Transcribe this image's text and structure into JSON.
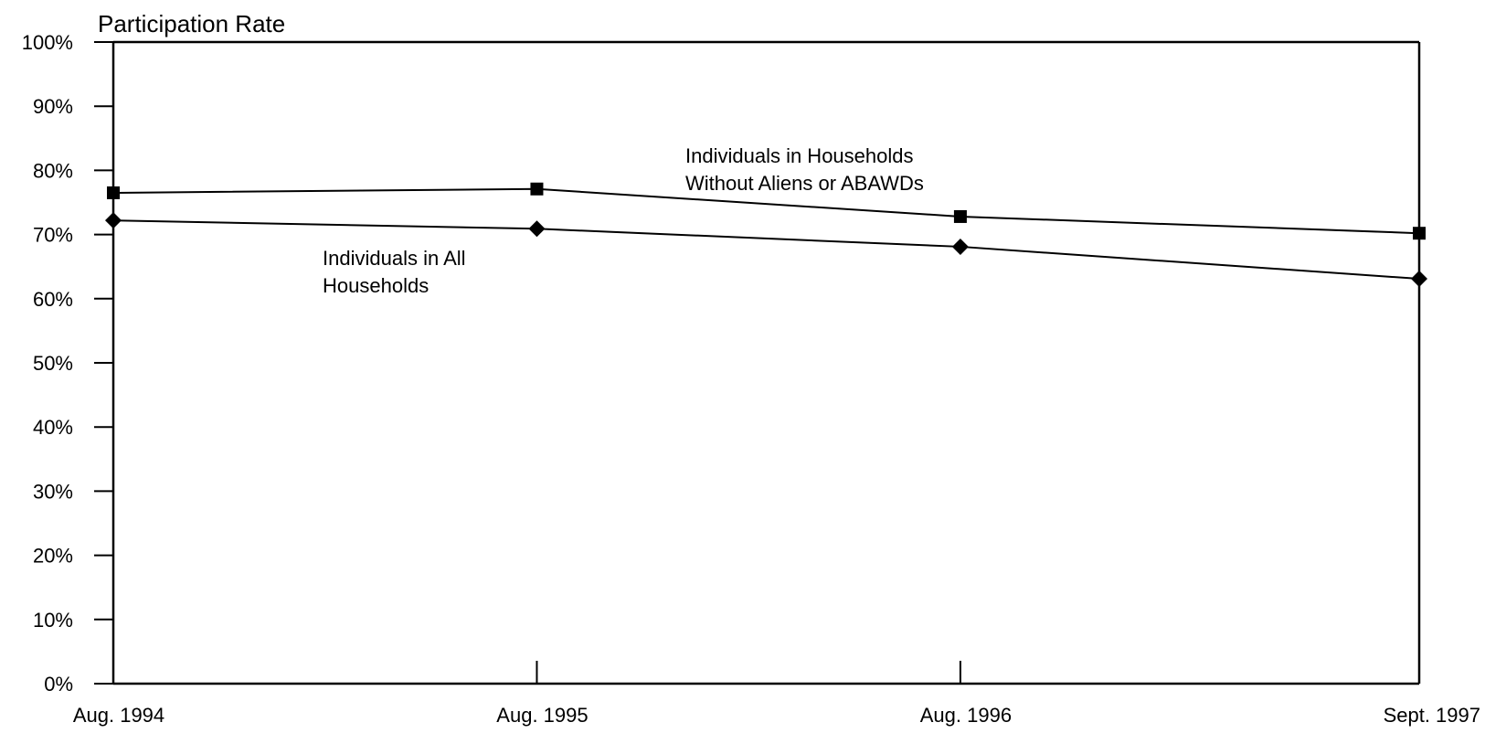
{
  "chart_data": {
    "type": "line",
    "ylabel": "Participation Rate",
    "xlabel": "",
    "title": "",
    "categories": [
      "Aug. 1994",
      "Aug. 1995",
      "Aug. 1996",
      "Sept. 1997"
    ],
    "x_positions_months": [
      0,
      12,
      24,
      37
    ],
    "ylim": [
      0,
      100
    ],
    "yticks": [
      "0%",
      "10%",
      "20%",
      "30%",
      "40%",
      "50%",
      "60%",
      "70%",
      "80%",
      "90%",
      "100%"
    ],
    "grid": false,
    "legend": "none",
    "series": [
      {
        "name": "Individuals in Households Without Aliens or ABAWDs",
        "marker": "square",
        "values": [
          76.5,
          77.1,
          72.8,
          70.2
        ]
      },
      {
        "name": "Individuals in All Households",
        "marker": "diamond",
        "values": [
          72.2,
          70.9,
          68.1,
          63.1
        ]
      }
    ],
    "annotations": [
      {
        "series": 0,
        "lines": [
          "Individuals in Households",
          "Without Aliens or ABAWDs"
        ]
      },
      {
        "series": 1,
        "lines": [
          "Individuals in All",
          "Households"
        ]
      }
    ]
  }
}
